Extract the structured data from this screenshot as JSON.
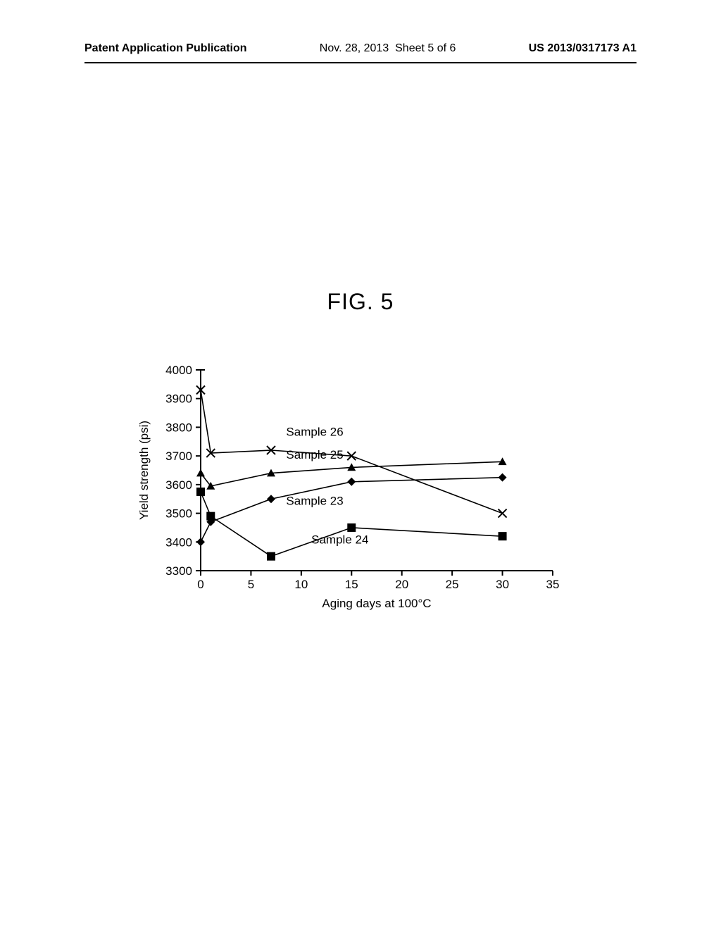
{
  "header": {
    "publication_label": "Patent Application Publication",
    "date": "Nov. 28, 2013",
    "sheet": "Sheet 5 of 6",
    "patent_number": "US 2013/0317173 A1"
  },
  "figure": {
    "title": "FIG. 5"
  },
  "chart": {
    "type": "line",
    "xlabel": "Aging days at 100°C",
    "ylabel": "Yield strength (psi)",
    "xlim": [
      0,
      35
    ],
    "ylim": [
      3300,
      4000
    ],
    "xticks": [
      0,
      5,
      10,
      15,
      20,
      25,
      30,
      35
    ],
    "yticks": [
      3300,
      3400,
      3500,
      3600,
      3700,
      3800,
      3900,
      4000
    ],
    "label_fontsize": 17,
    "tick_fontsize": 17,
    "annotation_fontsize": 17,
    "line_color": "#000000",
    "line_width": 1.6,
    "axis_color": "#000000",
    "axis_width": 2,
    "marker_size": 6,
    "background_color": "#ffffff",
    "series": [
      {
        "name": "Sample 23",
        "marker": "diamond",
        "x": [
          0,
          1,
          7,
          15,
          30
        ],
        "y": [
          3400,
          3470,
          3550,
          3610,
          3625
        ],
        "label_pos": {
          "x": 8.5,
          "y": 3530
        }
      },
      {
        "name": "Sample 24",
        "marker": "square",
        "x": [
          0,
          1,
          7,
          15,
          30
        ],
        "y": [
          3575,
          3490,
          3350,
          3450,
          3420
        ],
        "label_pos": {
          "x": 11,
          "y": 3395
        }
      },
      {
        "name": "Sample 25",
        "marker": "triangle",
        "x": [
          0,
          1,
          7,
          15,
          30
        ],
        "y": [
          3640,
          3595,
          3640,
          3660,
          3680
        ],
        "label_pos": {
          "x": 8.5,
          "y": 3690
        }
      },
      {
        "name": "Sample 26",
        "marker": "x",
        "x": [
          0,
          1,
          7,
          15,
          30
        ],
        "y": [
          3930,
          3710,
          3720,
          3700,
          3500
        ],
        "label_pos": {
          "x": 8.5,
          "y": 3770
        }
      }
    ]
  }
}
